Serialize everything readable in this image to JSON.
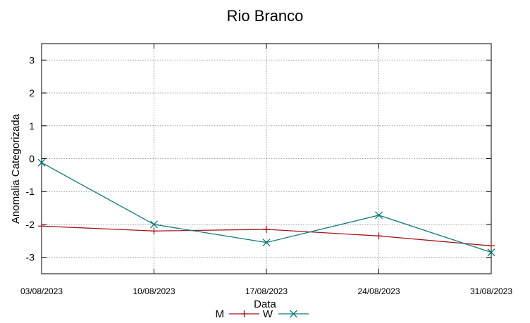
{
  "chart_data": {
    "type": "line",
    "title": "Rio Branco",
    "xlabel": "Data",
    "ylabel": "Anomalia Categorizada",
    "categories": [
      "03/08/2023",
      "10/08/2023",
      "17/08/2023",
      "24/08/2023",
      "31/08/2023"
    ],
    "yticks": [
      "3",
      "2",
      "1",
      "0",
      "-1",
      "-2",
      "-3"
    ],
    "ylim": [
      -3.5,
      3.5
    ],
    "grid": true,
    "legend_position": "bottom",
    "series": [
      {
        "name": "M",
        "values": [
          -2.05,
          -2.2,
          -2.15,
          -2.35,
          -2.65
        ],
        "color": "#a0161c",
        "marker": "plus"
      },
      {
        "name": "W",
        "values": [
          -0.12,
          -2.0,
          -2.55,
          -1.72,
          -2.85
        ],
        "color": "#0c7b7b",
        "marker": "cross"
      }
    ]
  }
}
